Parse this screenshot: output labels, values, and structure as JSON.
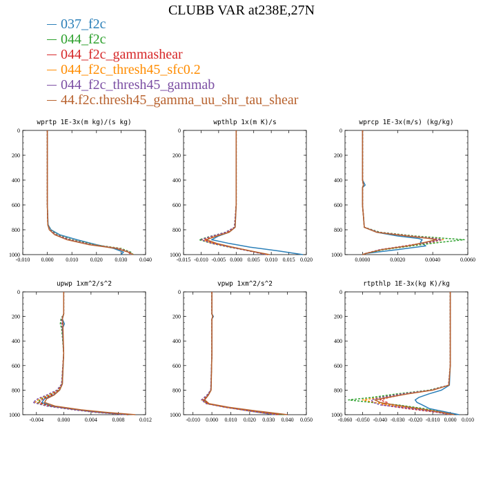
{
  "title": "CLUBB VAR at238E,27N",
  "legend": [
    {
      "label": "037_f2c",
      "color": "#2a7fb8"
    },
    {
      "label": "044_f2c",
      "color": "#2ca02c"
    },
    {
      "label": "044_f2c_gammashear",
      "color": "#d62728"
    },
    {
      "label": "044_f2c_thresh45_sfc0.2",
      "color": "#ff8c00"
    },
    {
      "label": "044_f2c_thresh45_gammab",
      "color": "#7b4ea3"
    },
    {
      "label": "44.f2c.thresh45_gamma_uu_shr_tau_shear",
      "color": "#b8622e"
    }
  ],
  "chart_data": [
    {
      "type": "line",
      "title": "wprtp  1E-3x(m kg)/(s kg)",
      "xlim": [
        -0.01,
        0.04
      ],
      "ylim": [
        1000,
        0
      ],
      "xticks": [
        -0.01,
        0,
        0.01,
        0.02,
        0.03,
        0.04
      ],
      "xtick_labels": [
        "-0.010",
        "0.000",
        "0.010",
        "0.020",
        "0.030",
        "0.040"
      ],
      "yticks": [
        0,
        200,
        400,
        600,
        800,
        1000
      ],
      "ytick_labels": [
        "0",
        "200",
        "400",
        "600",
        "800",
        "1000"
      ],
      "y": [
        0,
        200,
        400,
        600,
        760,
        800,
        840,
        880,
        920,
        950,
        980,
        1000
      ],
      "series": [
        {
          "values": [
            0,
            0,
            0,
            0,
            0.0003,
            0.0015,
            0.005,
            0.012,
            0.02,
            0.027,
            0.031,
            0.03
          ],
          "color": "#2a7fb8"
        },
        {
          "values": [
            0,
            0,
            0,
            0,
            0.0002,
            0.0012,
            0.004,
            0.01,
            0.019,
            0.03,
            0.034,
            0.035
          ],
          "color": "#2ca02c",
          "dash": true
        },
        {
          "values": [
            0,
            0,
            0,
            0,
            0.0002,
            0.001,
            0.0035,
            0.009,
            0.018,
            0.029,
            0.033,
            0.034
          ],
          "color": "#d62728",
          "dash": true
        },
        {
          "values": [
            0,
            0,
            0,
            0,
            0.0002,
            0.0011,
            0.0038,
            0.0095,
            0.0185,
            0.0295,
            0.0335,
            0.0345
          ],
          "color": "#ff8c00",
          "dash": true
        },
        {
          "values": [
            0,
            0,
            0,
            0,
            0.0002,
            0.001,
            0.0036,
            0.0092,
            0.018,
            0.029,
            0.0335,
            0.0345
          ],
          "color": "#7b4ea3",
          "dash": true
        },
        {
          "values": [
            0,
            0,
            0,
            0,
            0.0002,
            0.0008,
            0.003,
            0.008,
            0.017,
            0.028,
            0.033,
            0.035
          ],
          "color": "#b8622e"
        }
      ]
    },
    {
      "type": "line",
      "title": "wpthlp  1x(m K)/s",
      "xlim": [
        -0.015,
        0.02
      ],
      "ylim": [
        1000,
        0
      ],
      "xticks": [
        -0.015,
        -0.01,
        -0.005,
        0,
        0.005,
        0.01,
        0.015,
        0.02
      ],
      "xtick_labels": [
        "-0.015",
        "-0.010",
        "-0.005",
        "0.000",
        "0.005",
        "0.010",
        "0.015",
        "0.020"
      ],
      "yticks": [
        0,
        200,
        400,
        600,
        800,
        1000
      ],
      "ytick_labels": [
        "0",
        "200",
        "400",
        "600",
        "800",
        "1000"
      ],
      "y": [
        0,
        200,
        400,
        600,
        780,
        820,
        850,
        880,
        910,
        940,
        970,
        1000
      ],
      "series": [
        {
          "values": [
            0,
            0,
            0,
            0,
            -0.0003,
            -0.002,
            -0.005,
            -0.007,
            -0.002,
            0.004,
            0.012,
            0.019
          ],
          "color": "#2a7fb8"
        },
        {
          "values": [
            0,
            0,
            0,
            0,
            -0.0005,
            -0.003,
            -0.007,
            -0.0105,
            -0.007,
            -0.002,
            0.004,
            0.009
          ],
          "color": "#2ca02c",
          "dash": true
        },
        {
          "values": [
            0,
            0,
            0,
            0,
            -0.0004,
            -0.0025,
            -0.006,
            -0.009,
            -0.006,
            -0.001,
            0.004,
            0.009
          ],
          "color": "#d62728",
          "dash": true
        },
        {
          "values": [
            0,
            0,
            0,
            0,
            -0.0005,
            -0.0028,
            -0.0065,
            -0.0098,
            -0.0065,
            -0.0015,
            0.004,
            0.009
          ],
          "color": "#ff8c00",
          "dash": true
        },
        {
          "values": [
            0,
            0,
            0,
            0,
            -0.0005,
            -0.003,
            -0.0068,
            -0.01,
            -0.0068,
            -0.0018,
            0.0035,
            0.0085
          ],
          "color": "#7b4ea3",
          "dash": true
        },
        {
          "values": [
            0,
            0,
            0,
            0,
            -0.0003,
            -0.002,
            -0.0055,
            -0.0085,
            -0.0055,
            -0.001,
            0.004,
            0.0095
          ],
          "color": "#b8622e"
        }
      ]
    },
    {
      "type": "line",
      "title": "wprcp  1E-3x(m/s) (kg/kg)",
      "xlim": [
        -0.001,
        0.006
      ],
      "ylim": [
        1000,
        0
      ],
      "xticks": [
        0,
        0.002,
        0.004,
        0.006
      ],
      "xtick_labels": [
        "0.0000",
        "0.0020",
        "0.0040",
        "0.0060"
      ],
      "yticks": [
        0,
        200,
        400,
        600,
        800,
        1000
      ],
      "ytick_labels": [
        "0",
        "200",
        "400",
        "600",
        "800",
        "1000"
      ],
      "y": [
        0,
        200,
        400,
        440,
        460,
        600,
        780,
        820,
        850,
        870,
        880,
        900,
        930,
        960,
        990,
        1000
      ],
      "series": [
        {
          "values": [
            0,
            0,
            0,
            0.00015,
            0,
            0,
            0.0001,
            0.0008,
            0.002,
            0.0032,
            0.0034,
            0.0033,
            0.0036,
            0.002,
            0.0002,
            0
          ],
          "color": "#2a7fb8"
        },
        {
          "values": [
            0,
            0,
            0,
            5e-05,
            0,
            0,
            0.0001,
            0.001,
            0.003,
            0.0048,
            0.0058,
            0.0045,
            0.0028,
            0.0012,
            0.0002,
            0
          ],
          "color": "#2ca02c",
          "dash": true
        },
        {
          "values": [
            0,
            0,
            0,
            5e-05,
            0,
            0,
            0.0001,
            0.0009,
            0.0027,
            0.004,
            0.0044,
            0.0038,
            0.0024,
            0.001,
            0.0002,
            0
          ],
          "color": "#d62728",
          "dash": true
        },
        {
          "values": [
            0,
            0,
            0,
            5e-05,
            0,
            0,
            0.0001,
            0.0009,
            0.0028,
            0.0042,
            0.0046,
            0.004,
            0.0025,
            0.001,
            0.0002,
            0
          ],
          "color": "#ff8c00",
          "dash": true
        },
        {
          "values": [
            0,
            0,
            0,
            5e-05,
            0,
            0,
            0.0001,
            0.0009,
            0.0027,
            0.0041,
            0.0045,
            0.0039,
            0.0025,
            0.001,
            0.0002,
            0
          ],
          "color": "#7b4ea3",
          "dash": true
        },
        {
          "values": [
            0,
            0,
            0,
            5e-05,
            0,
            0,
            0.0001,
            0.0008,
            0.0025,
            0.0038,
            0.0042,
            0.0036,
            0.0026,
            0.0011,
            0.0002,
            0
          ],
          "color": "#b8622e"
        }
      ]
    },
    {
      "type": "line",
      "title": "upwp  1xm^2/s^2",
      "xlim": [
        -0.006,
        0.012
      ],
      "ylim": [
        1000,
        0
      ],
      "xticks": [
        -0.004,
        0,
        0.004,
        0.008,
        0.012
      ],
      "xtick_labels": [
        "-0.004",
        "0.000",
        "0.004",
        "0.008",
        "0.012"
      ],
      "yticks": [
        0,
        200,
        400,
        600,
        800,
        1000
      ],
      "ytick_labels": [
        "0",
        "200",
        "400",
        "600",
        "800",
        "1000"
      ],
      "y": [
        0,
        180,
        220,
        260,
        300,
        500,
        750,
        800,
        840,
        870,
        900,
        930,
        960,
        980,
        1000
      ],
      "series": [
        {
          "values": [
            0,
            0,
            -0.0002,
            0.0001,
            -0.0002,
            0,
            -0.0002,
            -0.0006,
            -0.0015,
            -0.0028,
            -0.0032,
            -0.0018,
            0.002,
            0.005,
            0.0095
          ],
          "color": "#2a7fb8"
        },
        {
          "values": [
            0,
            0,
            -0.0004,
            -0.0005,
            -0.0003,
            0,
            -0.0003,
            -0.0008,
            -0.002,
            -0.0033,
            -0.0038,
            -0.002,
            0.002,
            0.005,
            0.0095
          ],
          "color": "#2ca02c",
          "dash": true
        },
        {
          "values": [
            0,
            0,
            -0.0003,
            -0.0002,
            -0.0002,
            0,
            -0.0003,
            -0.0008,
            -0.0018,
            -0.003,
            -0.0036,
            -0.0019,
            0.002,
            0.005,
            0.0095
          ],
          "color": "#d62728",
          "dash": true
        },
        {
          "values": [
            0,
            0,
            -0.0003,
            -0.0003,
            -0.0002,
            0,
            -0.0003,
            -0.0009,
            -0.0022,
            -0.0035,
            -0.0042,
            -0.0024,
            0.0015,
            0.0045,
            0.009
          ],
          "color": "#ff8c00",
          "dash": true
        },
        {
          "values": [
            0,
            0,
            -0.0003,
            -0.0003,
            -0.0002,
            0,
            -0.0003,
            -0.001,
            -0.0025,
            -0.0038,
            -0.0045,
            -0.0025,
            0.0015,
            0.0045,
            0.009
          ],
          "color": "#7b4ea3",
          "dash": true
        },
        {
          "values": [
            0,
            0,
            -0.0002,
            -0.0001,
            -0.0001,
            0,
            -0.0002,
            -0.0006,
            -0.0014,
            -0.0025,
            -0.0028,
            -0.0013,
            0.0025,
            0.006,
            0.0105
          ],
          "color": "#b8622e"
        }
      ]
    },
    {
      "type": "line",
      "title": "vpwp  1xm^2/s^2",
      "xlim": [
        -0.015,
        0.05
      ],
      "ylim": [
        1000,
        0
      ],
      "xticks": [
        -0.01,
        0,
        0.01,
        0.02,
        0.03,
        0.04,
        0.05
      ],
      "xtick_labels": [
        "-0.010",
        "0.000",
        "0.010",
        "0.020",
        "0.030",
        "0.040",
        "0.050"
      ],
      "yticks": [
        0,
        200,
        400,
        600,
        800,
        1000
      ],
      "ytick_labels": [
        "0",
        "200",
        "400",
        "600",
        "800",
        "1000"
      ],
      "y": [
        0,
        180,
        200,
        220,
        500,
        800,
        840,
        880,
        910,
        940,
        970,
        1000
      ],
      "series": [
        {
          "values": [
            0,
            0,
            0.0008,
            0,
            0,
            -0.0005,
            -0.002,
            -0.004,
            -0.002,
            0.008,
            0.02,
            0.033
          ],
          "color": "#2a7fb8"
        },
        {
          "values": [
            0,
            0,
            0.0005,
            0,
            0,
            -0.0005,
            -0.0025,
            -0.005,
            -0.0025,
            0.008,
            0.022,
            0.038
          ],
          "color": "#2ca02c",
          "dash": true
        },
        {
          "values": [
            0,
            0,
            0.0005,
            0,
            0,
            -0.0005,
            -0.0022,
            -0.0045,
            -0.0022,
            0.008,
            0.021,
            0.036
          ],
          "color": "#d62728",
          "dash": true
        },
        {
          "values": [
            0,
            0,
            0.0005,
            0,
            0,
            -0.0006,
            -0.0025,
            -0.0052,
            -0.0028,
            0.007,
            0.02,
            0.034
          ],
          "color": "#ff8c00",
          "dash": true
        },
        {
          "values": [
            0,
            0,
            0.0005,
            0,
            0,
            -0.0006,
            -0.0026,
            -0.0055,
            -0.003,
            0.007,
            0.02,
            0.034
          ],
          "color": "#7b4ea3",
          "dash": true
        },
        {
          "values": [
            0,
            0,
            0.0004,
            0,
            0,
            -0.0004,
            -0.0018,
            -0.0038,
            -0.0015,
            0.009,
            0.024,
            0.04
          ],
          "color": "#b8622e"
        }
      ]
    },
    {
      "type": "line",
      "title": "rtpthlp  1E-3x(kg K)/kg",
      "xlim": [
        -0.06,
        0.01
      ],
      "ylim": [
        1000,
        0
      ],
      "xticks": [
        -0.06,
        -0.05,
        -0.04,
        -0.03,
        -0.02,
        -0.01,
        0,
        0.01
      ],
      "xtick_labels": [
        "-0.060",
        "-0.050",
        "-0.040",
        "-0.030",
        "-0.020",
        "-0.010",
        "0.000",
        "0.010"
      ],
      "yticks": [
        0,
        200,
        400,
        600,
        800,
        1000
      ],
      "ytick_labels": [
        "0",
        "200",
        "400",
        "600",
        "800",
        "1000"
      ],
      "y": [
        0,
        400,
        600,
        760,
        800,
        830,
        860,
        880,
        900,
        920,
        950,
        980,
        1000
      ],
      "series": [
        {
          "values": [
            0,
            0,
            0,
            -0.0005,
            -0.005,
            -0.012,
            -0.018,
            -0.02,
            -0.019,
            -0.016,
            -0.012,
            -0.002,
            0.005
          ],
          "color": "#2a7fb8"
        },
        {
          "values": [
            0,
            0,
            0,
            -0.001,
            -0.012,
            -0.03,
            -0.045,
            -0.058,
            -0.045,
            -0.03,
            -0.015,
            -0.005,
            0
          ],
          "color": "#2ca02c",
          "dash": true
        },
        {
          "values": [
            0,
            0,
            0,
            -0.001,
            -0.01,
            -0.025,
            -0.035,
            -0.04,
            -0.036,
            -0.039,
            -0.025,
            -0.008,
            0
          ],
          "color": "#d62728",
          "dash": true
        },
        {
          "values": [
            0,
            0,
            0,
            -0.001,
            -0.011,
            -0.027,
            -0.04,
            -0.05,
            -0.043,
            -0.035,
            -0.02,
            -0.006,
            0
          ],
          "color": "#ff8c00",
          "dash": true
        },
        {
          "values": [
            0,
            0,
            0,
            -0.001,
            -0.011,
            -0.027,
            -0.04,
            -0.045,
            -0.044,
            -0.04,
            -0.022,
            -0.007,
            0
          ],
          "color": "#7b4ea3",
          "dash": true
        },
        {
          "values": [
            0,
            0,
            0,
            -0.0008,
            -0.01,
            -0.024,
            -0.036,
            -0.043,
            -0.04,
            -0.032,
            -0.018,
            -0.005,
            0.002
          ],
          "color": "#b8622e"
        }
      ]
    }
  ]
}
